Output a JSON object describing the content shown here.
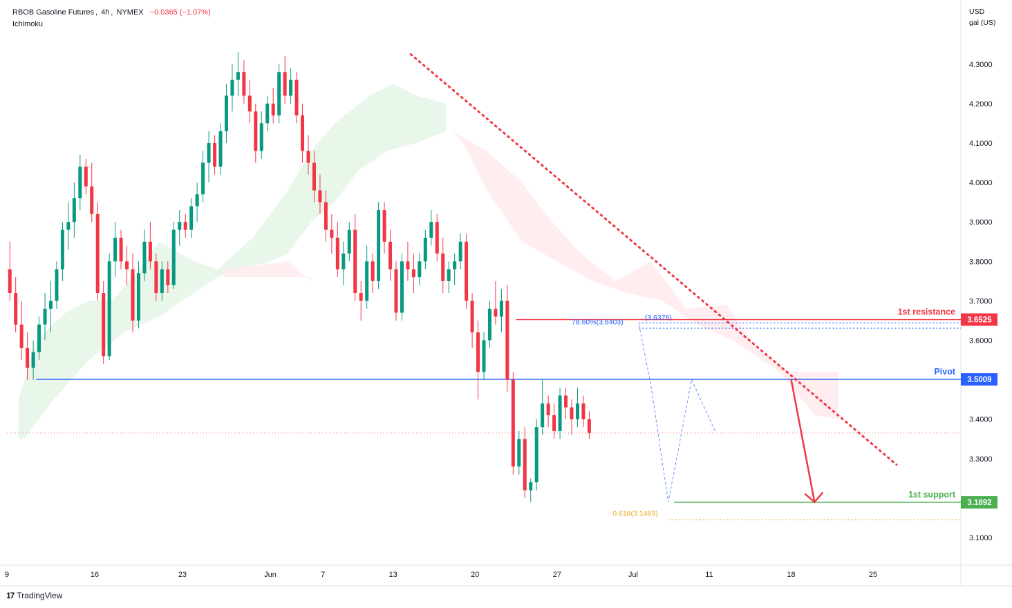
{
  "header": {
    "symbol": "RBOB Gasoline Futures",
    "interval": "4h",
    "exchange": "NYMEX",
    "change": "−0.0365 (−1.07%)",
    "indicator": "Ichimoku"
  },
  "axis_unit": {
    "line1": "USD",
    "line2": "gal (US)"
  },
  "footer": {
    "brand": "TradingView",
    "logo_mark": "17"
  },
  "colors": {
    "up": "#26a69a",
    "down": "#ef5350",
    "candle_up": "#089981",
    "candle_down": "#f23645",
    "resistance": "#f23645",
    "pivot": "#2962ff",
    "support": "#4caf50",
    "fib": "#e6a817",
    "cloud_bull": "#e8f5e9",
    "cloud_bear": "#ffebee"
  },
  "chart_data": {
    "type": "candlestick",
    "y_ticks": [
      "4.3000",
      "4.2000",
      "4.1000",
      "4.0000",
      "3.9000",
      "3.8000",
      "3.7000",
      "3.6000",
      "3.4000",
      "3.3000",
      "3.1000"
    ],
    "y_tick_values": [
      4.3,
      4.2,
      4.1,
      4.0,
      3.9,
      3.8,
      3.7,
      3.6,
      3.4,
      3.3,
      3.1
    ],
    "ylim": [
      3.03,
      4.41
    ],
    "x_ticks": [
      "9",
      "16",
      "23",
      "Jun",
      "7",
      "13",
      "20",
      "27",
      "Jul",
      "11",
      "18",
      "25"
    ],
    "x_tick_positions": [
      0,
      15,
      30,
      45,
      54,
      66,
      80,
      94,
      107,
      120,
      134,
      148
    ],
    "xlim": [
      0,
      163
    ],
    "levels": [
      {
        "name": "1st resistance",
        "value": 3.6525,
        "label": "3.6525",
        "color": "#f23645"
      },
      {
        "name": "Pivot",
        "value": 3.5009,
        "label": "3.5009",
        "color": "#2962ff"
      },
      {
        "name": "1st support",
        "value": 3.1892,
        "label": "3.1892",
        "color": "#4caf50"
      }
    ],
    "fib_labels": [
      {
        "text": "78.60%(3.6403)",
        "value": 3.6403
      },
      {
        "text": "(3.6376)",
        "value": 3.6376
      },
      {
        "text": "0.618(3.1483)",
        "value": 3.1483
      }
    ],
    "last_price": 3.365,
    "trendline": {
      "from": [
        69,
        4.325
      ],
      "to": [
        152,
        3.285
      ]
    },
    "projection_arrow": {
      "from": [
        134,
        3.501
      ],
      "to": [
        138,
        3.19
      ]
    },
    "candles": [
      {
        "o": 3.78,
        "h": 3.85,
        "l": 3.7,
        "c": 3.72
      },
      {
        "o": 3.72,
        "h": 3.76,
        "l": 3.62,
        "c": 3.64
      },
      {
        "o": 3.64,
        "h": 3.7,
        "l": 3.55,
        "c": 3.58
      },
      {
        "o": 3.58,
        "h": 3.62,
        "l": 3.5,
        "c": 3.53
      },
      {
        "o": 3.53,
        "h": 3.6,
        "l": 3.5,
        "c": 3.57
      },
      {
        "o": 3.57,
        "h": 3.66,
        "l": 3.55,
        "c": 3.64
      },
      {
        "o": 3.64,
        "h": 3.72,
        "l": 3.6,
        "c": 3.68
      },
      {
        "o": 3.68,
        "h": 3.75,
        "l": 3.62,
        "c": 3.7
      },
      {
        "o": 3.7,
        "h": 3.8,
        "l": 3.68,
        "c": 3.78
      },
      {
        "o": 3.78,
        "h": 3.9,
        "l": 3.75,
        "c": 3.88
      },
      {
        "o": 3.88,
        "h": 3.95,
        "l": 3.83,
        "c": 3.9
      },
      {
        "o": 3.9,
        "h": 4.0,
        "l": 3.86,
        "c": 3.96
      },
      {
        "o": 3.96,
        "h": 4.07,
        "l": 3.93,
        "c": 4.04
      },
      {
        "o": 4.04,
        "h": 4.06,
        "l": 3.97,
        "c": 3.99
      },
      {
        "o": 3.99,
        "h": 4.05,
        "l": 3.9,
        "c": 3.92
      },
      {
        "o": 3.92,
        "h": 3.95,
        "l": 3.7,
        "c": 3.72
      },
      {
        "o": 3.72,
        "h": 3.75,
        "l": 3.54,
        "c": 3.56
      },
      {
        "o": 3.56,
        "h": 3.82,
        "l": 3.55,
        "c": 3.8
      },
      {
        "o": 3.8,
        "h": 3.9,
        "l": 3.76,
        "c": 3.86
      },
      {
        "o": 3.86,
        "h": 3.88,
        "l": 3.78,
        "c": 3.8
      },
      {
        "o": 3.8,
        "h": 3.84,
        "l": 3.74,
        "c": 3.78
      },
      {
        "o": 3.78,
        "h": 3.82,
        "l": 3.62,
        "c": 3.65
      },
      {
        "o": 3.65,
        "h": 3.8,
        "l": 3.63,
        "c": 3.77
      },
      {
        "o": 3.77,
        "h": 3.88,
        "l": 3.75,
        "c": 3.85
      },
      {
        "o": 3.85,
        "h": 3.9,
        "l": 3.78,
        "c": 3.8
      },
      {
        "o": 3.8,
        "h": 3.82,
        "l": 3.7,
        "c": 3.72
      },
      {
        "o": 3.72,
        "h": 3.8,
        "l": 3.7,
        "c": 3.78
      },
      {
        "o": 3.78,
        "h": 3.8,
        "l": 3.72,
        "c": 3.74
      },
      {
        "o": 3.74,
        "h": 3.9,
        "l": 3.73,
        "c": 3.88
      },
      {
        "o": 3.88,
        "h": 3.93,
        "l": 3.84,
        "c": 3.9
      },
      {
        "o": 3.9,
        "h": 3.92,
        "l": 3.86,
        "c": 3.88
      },
      {
        "o": 3.88,
        "h": 3.96,
        "l": 3.86,
        "c": 3.94
      },
      {
        "o": 3.94,
        "h": 4.0,
        "l": 3.9,
        "c": 3.97
      },
      {
        "o": 3.97,
        "h": 4.08,
        "l": 3.95,
        "c": 4.05
      },
      {
        "o": 4.05,
        "h": 4.13,
        "l": 4.0,
        "c": 4.1
      },
      {
        "o": 4.1,
        "h": 4.12,
        "l": 4.02,
        "c": 4.04
      },
      {
        "o": 4.04,
        "h": 4.15,
        "l": 4.02,
        "c": 4.13
      },
      {
        "o": 4.13,
        "h": 4.25,
        "l": 4.1,
        "c": 4.22
      },
      {
        "o": 4.22,
        "h": 4.3,
        "l": 4.18,
        "c": 4.26
      },
      {
        "o": 4.26,
        "h": 4.33,
        "l": 4.22,
        "c": 4.28
      },
      {
        "o": 4.28,
        "h": 4.31,
        "l": 4.2,
        "c": 4.22
      },
      {
        "o": 4.22,
        "h": 4.26,
        "l": 4.15,
        "c": 4.18
      },
      {
        "o": 4.18,
        "h": 4.2,
        "l": 4.05,
        "c": 4.08
      },
      {
        "o": 4.08,
        "h": 4.18,
        "l": 4.06,
        "c": 4.15
      },
      {
        "o": 4.15,
        "h": 4.22,
        "l": 4.13,
        "c": 4.2
      },
      {
        "o": 4.2,
        "h": 4.24,
        "l": 4.15,
        "c": 4.17
      },
      {
        "o": 4.17,
        "h": 4.3,
        "l": 4.15,
        "c": 4.28
      },
      {
        "o": 4.28,
        "h": 4.32,
        "l": 4.2,
        "c": 4.22
      },
      {
        "o": 4.22,
        "h": 4.29,
        "l": 4.2,
        "c": 4.26
      },
      {
        "o": 4.26,
        "h": 4.28,
        "l": 4.15,
        "c": 4.17
      },
      {
        "o": 4.17,
        "h": 4.2,
        "l": 4.05,
        "c": 4.08
      },
      {
        "o": 4.08,
        "h": 4.12,
        "l": 4.02,
        "c": 4.05
      },
      {
        "o": 4.05,
        "h": 4.08,
        "l": 3.95,
        "c": 3.98
      },
      {
        "o": 3.98,
        "h": 4.02,
        "l": 3.92,
        "c": 3.95
      },
      {
        "o": 3.95,
        "h": 3.98,
        "l": 3.85,
        "c": 3.88
      },
      {
        "o": 3.88,
        "h": 3.92,
        "l": 3.82,
        "c": 3.86
      },
      {
        "o": 3.86,
        "h": 3.9,
        "l": 3.76,
        "c": 3.78
      },
      {
        "o": 3.78,
        "h": 3.85,
        "l": 3.74,
        "c": 3.82
      },
      {
        "o": 3.82,
        "h": 3.9,
        "l": 3.8,
        "c": 3.88
      },
      {
        "o": 3.88,
        "h": 3.92,
        "l": 3.7,
        "c": 3.72
      },
      {
        "o": 3.72,
        "h": 3.75,
        "l": 3.65,
        "c": 3.7
      },
      {
        "o": 3.7,
        "h": 3.84,
        "l": 3.68,
        "c": 3.8
      },
      {
        "o": 3.8,
        "h": 3.82,
        "l": 3.72,
        "c": 3.75
      },
      {
        "o": 3.75,
        "h": 3.95,
        "l": 3.73,
        "c": 3.93
      },
      {
        "o": 3.93,
        "h": 3.95,
        "l": 3.82,
        "c": 3.85
      },
      {
        "o": 3.85,
        "h": 3.88,
        "l": 3.75,
        "c": 3.78
      },
      {
        "o": 3.78,
        "h": 3.8,
        "l": 3.65,
        "c": 3.67
      },
      {
        "o": 3.67,
        "h": 3.82,
        "l": 3.65,
        "c": 3.8
      },
      {
        "o": 3.8,
        "h": 3.85,
        "l": 3.75,
        "c": 3.78
      },
      {
        "o": 3.78,
        "h": 3.82,
        "l": 3.72,
        "c": 3.76
      },
      {
        "o": 3.76,
        "h": 3.82,
        "l": 3.74,
        "c": 3.8
      },
      {
        "o": 3.8,
        "h": 3.88,
        "l": 3.78,
        "c": 3.86
      },
      {
        "o": 3.86,
        "h": 3.93,
        "l": 3.84,
        "c": 3.9
      },
      {
        "o": 3.9,
        "h": 3.92,
        "l": 3.8,
        "c": 3.82
      },
      {
        "o": 3.82,
        "h": 3.86,
        "l": 3.72,
        "c": 3.75
      },
      {
        "o": 3.75,
        "h": 3.8,
        "l": 3.72,
        "c": 3.78
      },
      {
        "o": 3.78,
        "h": 3.82,
        "l": 3.74,
        "c": 3.8
      },
      {
        "o": 3.8,
        "h": 3.87,
        "l": 3.78,
        "c": 3.85
      },
      {
        "o": 3.85,
        "h": 3.87,
        "l": 3.68,
        "c": 3.7
      },
      {
        "o": 3.7,
        "h": 3.72,
        "l": 3.58,
        "c": 3.62
      },
      {
        "o": 3.62,
        "h": 3.65,
        "l": 3.45,
        "c": 3.52
      },
      {
        "o": 3.52,
        "h": 3.62,
        "l": 3.5,
        "c": 3.6
      },
      {
        "o": 3.6,
        "h": 3.7,
        "l": 3.58,
        "c": 3.68
      },
      {
        "o": 3.68,
        "h": 3.75,
        "l": 3.64,
        "c": 3.66
      },
      {
        "o": 3.66,
        "h": 3.73,
        "l": 3.62,
        "c": 3.7
      },
      {
        "o": 3.7,
        "h": 3.74,
        "l": 3.47,
        "c": 3.5
      },
      {
        "o": 3.5,
        "h": 3.52,
        "l": 3.26,
        "c": 3.28
      },
      {
        "o": 3.28,
        "h": 3.37,
        "l": 3.26,
        "c": 3.35
      },
      {
        "o": 3.35,
        "h": 3.38,
        "l": 3.2,
        "c": 3.22
      },
      {
        "o": 3.22,
        "h": 3.25,
        "l": 3.19,
        "c": 3.24
      },
      {
        "o": 3.24,
        "h": 3.4,
        "l": 3.22,
        "c": 3.38
      },
      {
        "o": 3.38,
        "h": 3.5,
        "l": 3.36,
        "c": 3.44
      },
      {
        "o": 3.44,
        "h": 3.46,
        "l": 3.38,
        "c": 3.41
      },
      {
        "o": 3.41,
        "h": 3.44,
        "l": 3.35,
        "c": 3.37
      },
      {
        "o": 3.37,
        "h": 3.48,
        "l": 3.35,
        "c": 3.46
      },
      {
        "o": 3.46,
        "h": 3.48,
        "l": 3.4,
        "c": 3.43
      },
      {
        "o": 3.43,
        "h": 3.45,
        "l": 3.36,
        "c": 3.4
      },
      {
        "o": 3.4,
        "h": 3.48,
        "l": 3.38,
        "c": 3.44
      },
      {
        "o": 3.44,
        "h": 3.46,
        "l": 3.38,
        "c": 3.4
      },
      {
        "o": 3.4,
        "h": 3.42,
        "l": 3.35,
        "c": 3.365
      }
    ]
  }
}
